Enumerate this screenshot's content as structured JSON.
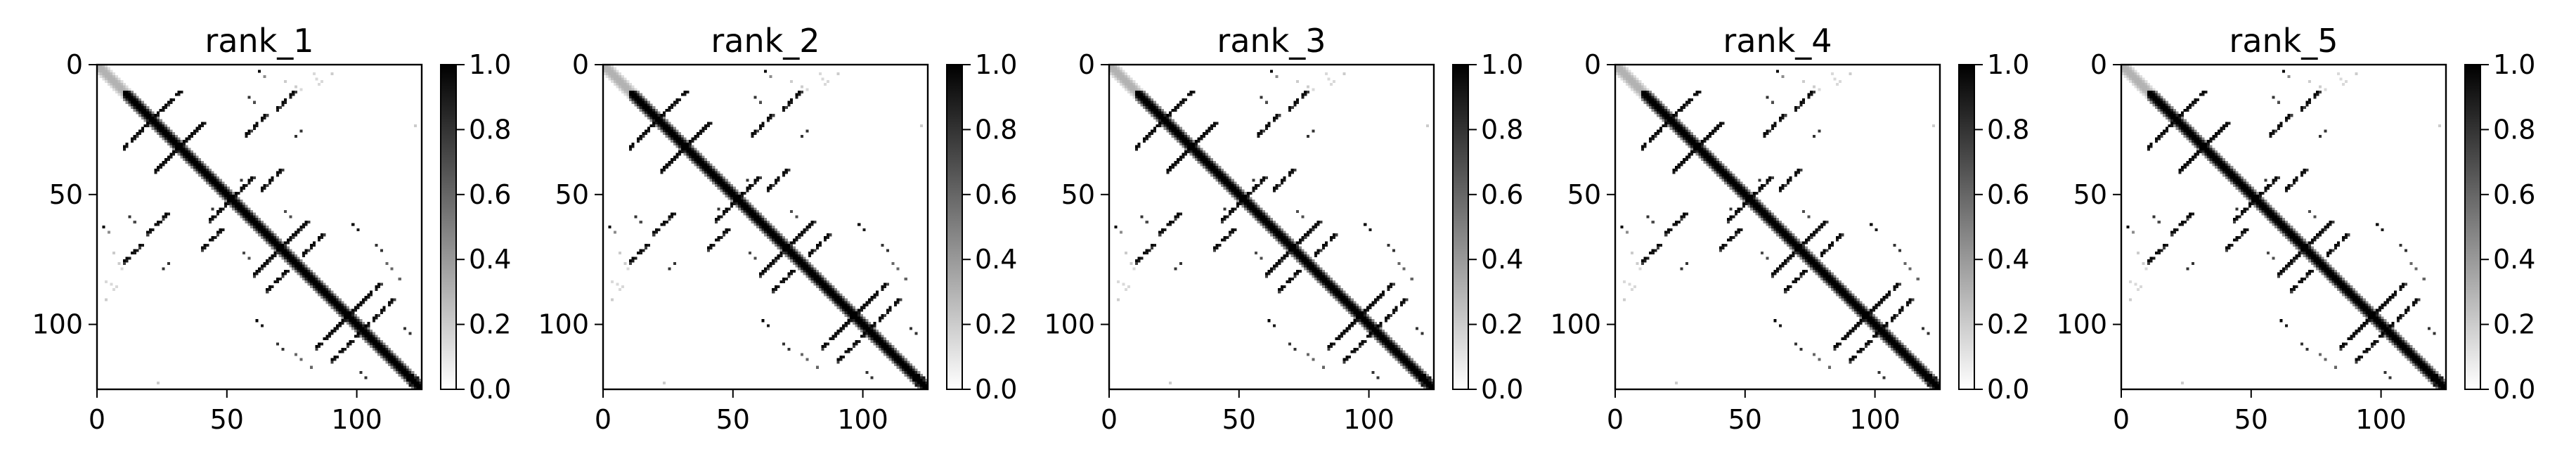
{
  "chart_data": [
    {
      "type": "heatmap",
      "title": "rank_1",
      "matrix_size": 125,
      "xlim": [
        0,
        125
      ],
      "ylim": [
        125,
        0
      ],
      "x_ticks": [
        0,
        50,
        100
      ],
      "y_ticks": [
        0,
        50,
        100
      ],
      "colorbar": {
        "ticks": [
          "0.0",
          "0.2",
          "0.4",
          "0.6",
          "0.8",
          "1.0"
        ],
        "range": [
          0,
          1
        ],
        "colormap": "gray_r"
      },
      "structure": {
        "diagonal": [
          [
            0,
            10,
            0.3
          ],
          [
            10,
            125,
            1.0
          ]
        ],
        "helices": [
          {
            "from": [
              15,
              26
            ],
            "to": [
              31,
              10
            ]
          },
          {
            "from": [
              22,
              40
            ],
            "to": [
              40,
              22
            ]
          },
          {
            "from": [
              43,
              59
            ],
            "to": [
              57,
              45
            ]
          },
          {
            "from": [
              19,
              64
            ],
            "to": [
              26,
              57
            ]
          },
          {
            "from": [
              60,
              80
            ],
            "to": [
              78,
              62
            ]
          },
          {
            "from": [
              65,
              86
            ],
            "to": [
              72,
              79
            ]
          },
          {
            "from": [
              84,
              108
            ],
            "to": [
              104,
              88
            ]
          },
          {
            "from": [
              90,
              113
            ],
            "to": [
              100,
              103
            ]
          },
          {
            "from": [
              10,
              75
            ],
            "to": [
              16,
              69
            ]
          },
          {
            "from": [
              40,
              70
            ],
            "to": [
              47,
              63
            ]
          }
        ],
        "pixels": [
          [
            2,
            62,
            1
          ],
          [
            4,
            64,
            0.45
          ],
          [
            6,
            72,
            0.2
          ],
          [
            8,
            76,
            0.2
          ],
          [
            9,
            78,
            0.15
          ],
          [
            12,
            58,
            0.8
          ],
          [
            14,
            60,
            0.7
          ],
          [
            25,
            78,
            0.8
          ],
          [
            27,
            76,
            0.8
          ],
          [
            3,
            83,
            0.15
          ],
          [
            5,
            84,
            0.15
          ],
          [
            6,
            86,
            0.15
          ],
          [
            7,
            85,
            0.15
          ],
          [
            3,
            90,
            0.2
          ],
          [
            44,
            55,
            0.8
          ],
          [
            46,
            57,
            0.7
          ],
          [
            56,
            72,
            0.7
          ],
          [
            58,
            74,
            0.7
          ],
          [
            61,
            98,
            1
          ],
          [
            63,
            100,
            0.9
          ],
          [
            71,
            109,
            0.8
          ],
          [
            69,
            107,
            0.8
          ],
          [
            119,
            121,
            1
          ],
          [
            120,
            123,
            0.9
          ],
          [
            121,
            125,
            0.8
          ],
          [
            101,
            118,
            0.8
          ],
          [
            103,
            120,
            0.8
          ],
          [
            23,
            122,
            0.2
          ],
          [
            76,
            111,
            0.6
          ],
          [
            78,
            113,
            0.6
          ],
          [
            82,
            116,
            0.6
          ]
        ]
      }
    },
    {
      "type": "heatmap",
      "title": "rank_2",
      "matrix_size": 125,
      "xlim": [
        0,
        125
      ],
      "ylim": [
        125,
        0
      ],
      "x_ticks": [
        0,
        50,
        100
      ],
      "y_ticks": [
        0,
        50,
        100
      ],
      "colorbar": {
        "ticks": [
          "0.0",
          "0.2",
          "0.4",
          "0.6",
          "0.8",
          "1.0"
        ],
        "range": [
          0,
          1
        ],
        "colormap": "gray_r"
      },
      "structure": "same as rank_1"
    },
    {
      "type": "heatmap",
      "title": "rank_3",
      "matrix_size": 125,
      "xlim": [
        0,
        125
      ],
      "ylim": [
        125,
        0
      ],
      "x_ticks": [
        0,
        50,
        100
      ],
      "y_ticks": [
        0,
        50,
        100
      ],
      "colorbar": {
        "ticks": [
          "0.0",
          "0.2",
          "0.4",
          "0.6",
          "0.8",
          "1.0"
        ],
        "range": [
          0,
          1
        ],
        "colormap": "gray_r"
      },
      "structure": "same as rank_1"
    },
    {
      "type": "heatmap",
      "title": "rank_4",
      "matrix_size": 125,
      "xlim": [
        0,
        125
      ],
      "ylim": [
        125,
        0
      ],
      "x_ticks": [
        0,
        50,
        100
      ],
      "y_ticks": [
        0,
        50,
        100
      ],
      "colorbar": {
        "ticks": [
          "0.0",
          "0.2",
          "0.4",
          "0.6",
          "0.8",
          "1.0"
        ],
        "range": [
          0,
          1
        ],
        "colormap": "gray_r"
      },
      "structure": "same as rank_1"
    },
    {
      "type": "heatmap",
      "title": "rank_5",
      "matrix_size": 125,
      "xlim": [
        0,
        125
      ],
      "ylim": [
        125,
        0
      ],
      "x_ticks": [
        0,
        50,
        100
      ],
      "y_ticks": [
        0,
        50,
        100
      ],
      "colorbar": {
        "ticks": [
          "0.0",
          "0.2",
          "0.4",
          "0.6",
          "0.8",
          "1.0"
        ],
        "range": [
          0,
          1
        ],
        "colormap": "gray_r"
      },
      "structure": "same as rank_1"
    }
  ]
}
